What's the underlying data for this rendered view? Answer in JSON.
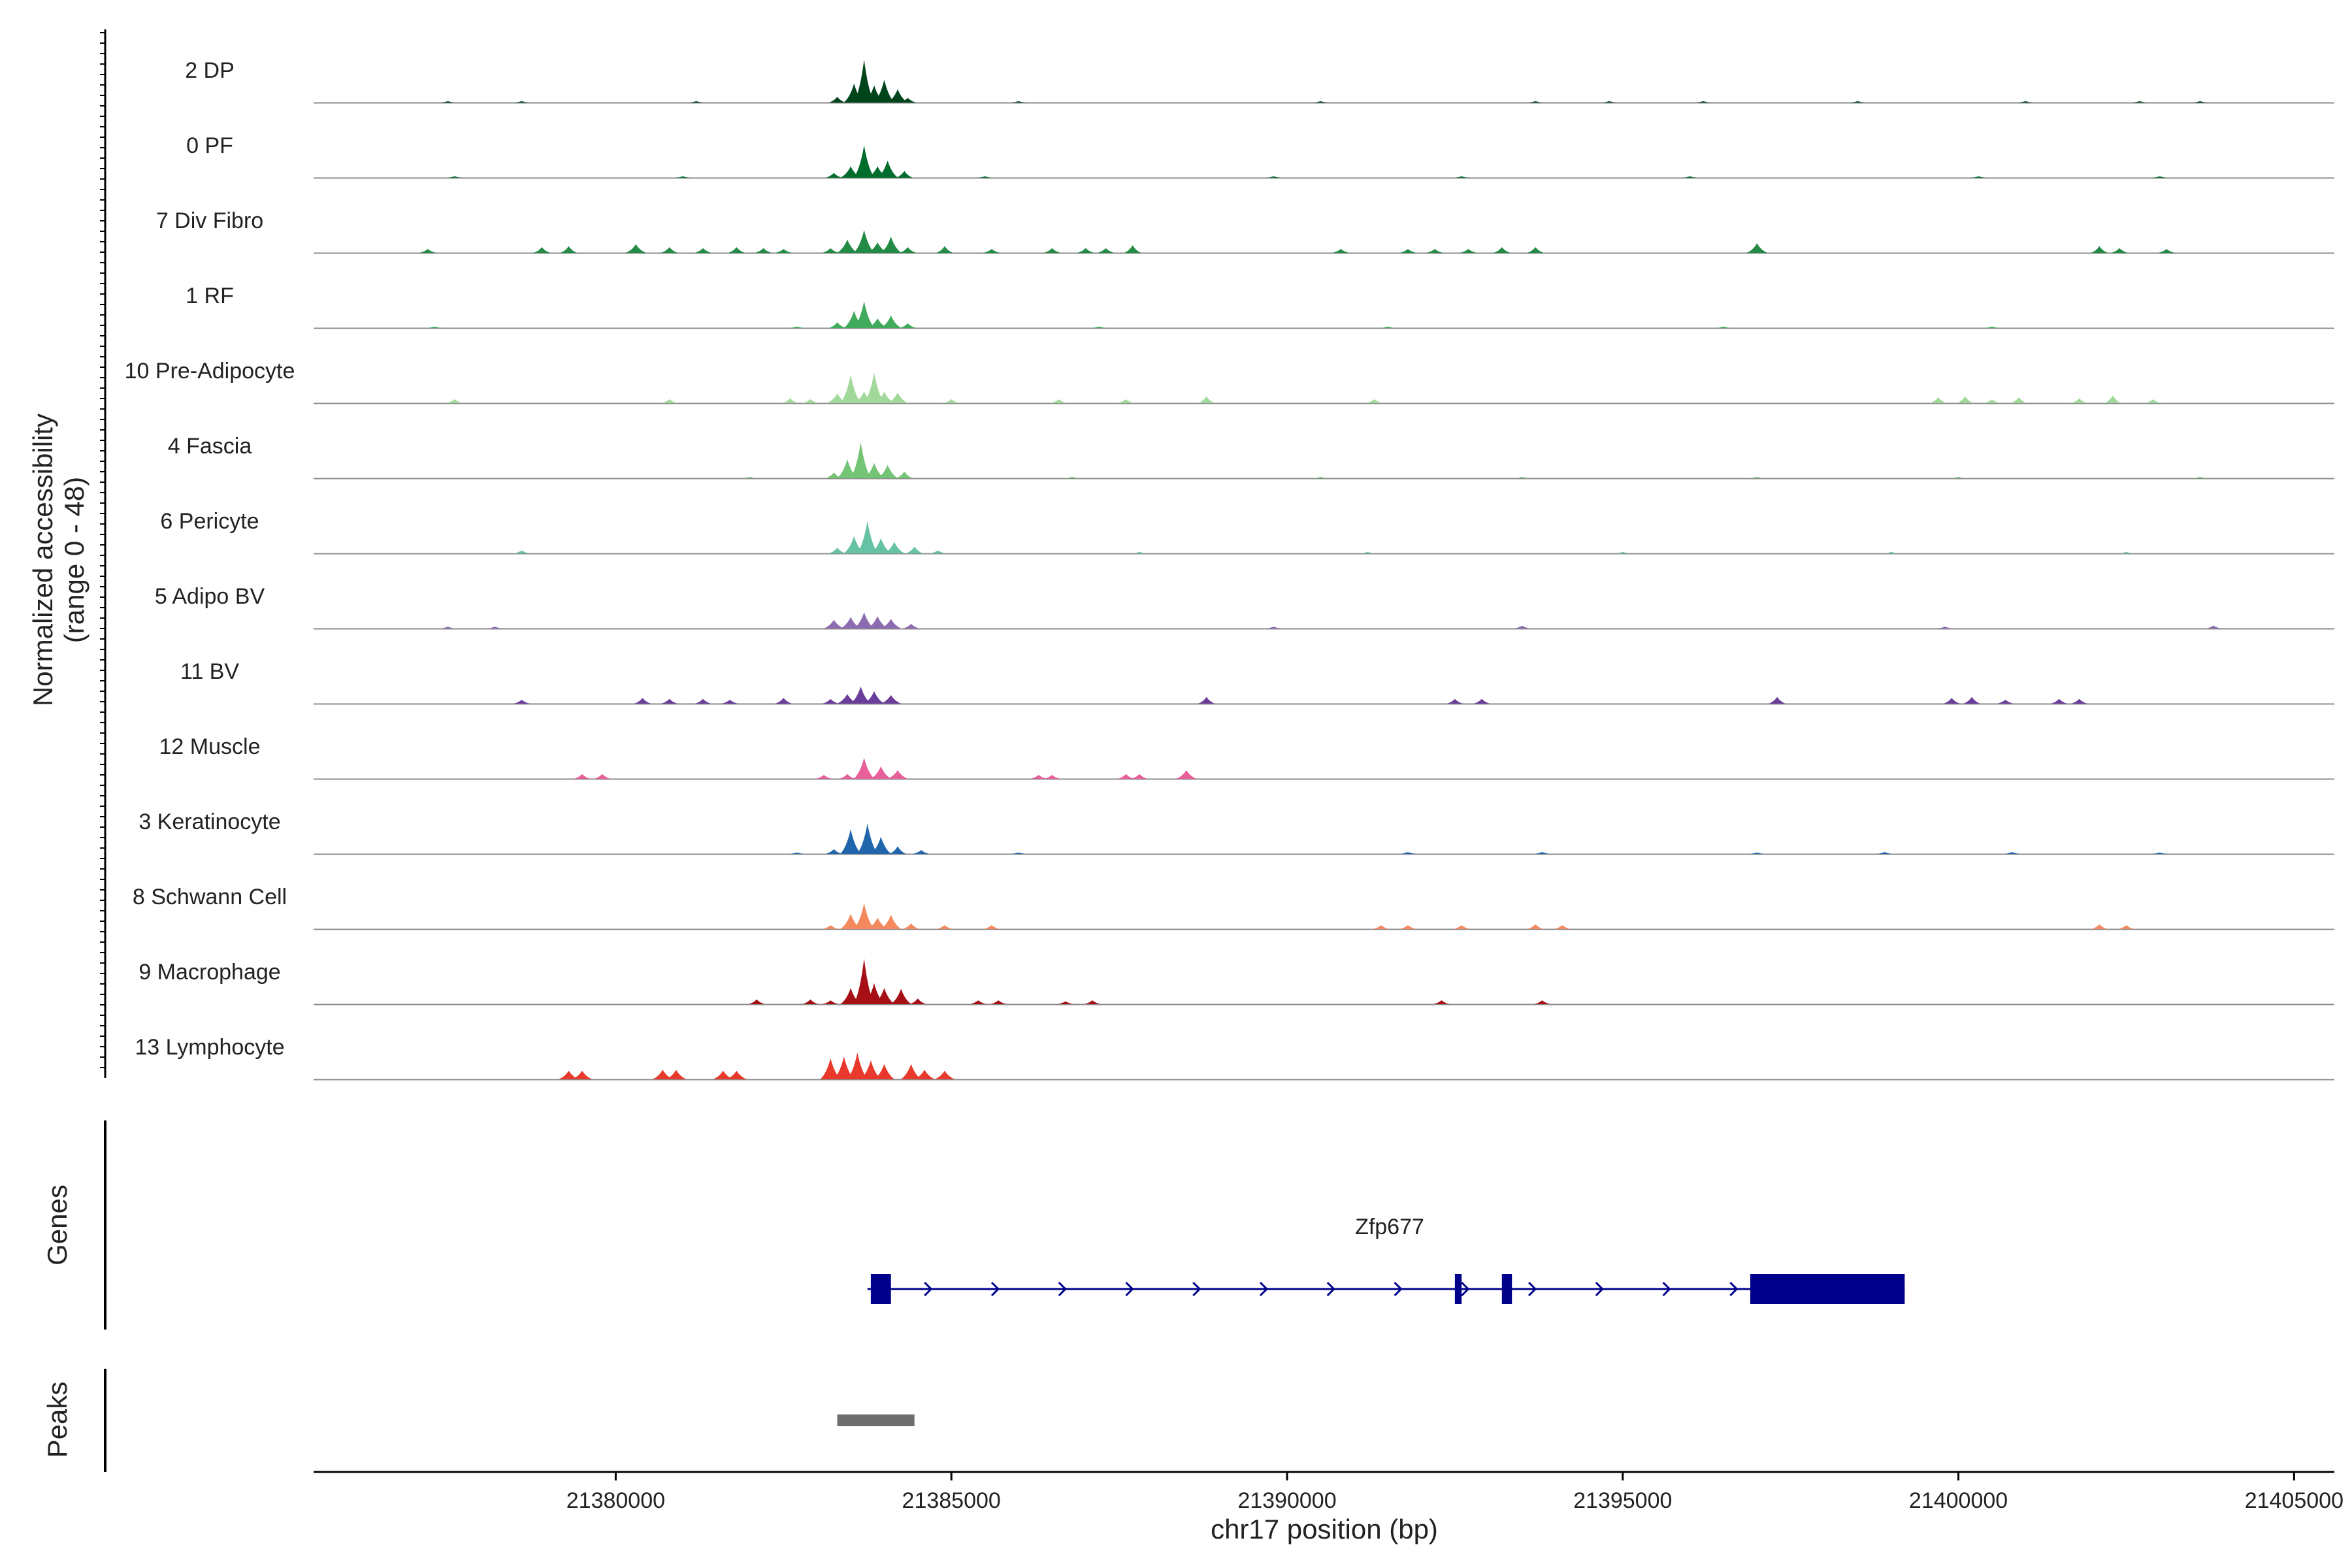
{
  "chart_data": {
    "type": "area",
    "xlabel": "chr17 position (bp)",
    "ylabel_line1": "Normalized accessibility",
    "ylabel_line2": "(range 0 - 48)",
    "y_range": [
      0,
      48
    ],
    "xlim": [
      21375500,
      21405600
    ],
    "x_ticks": [
      {
        "value": 21380000,
        "label": "21380000"
      },
      {
        "value": 21385000,
        "label": "21385000"
      },
      {
        "value": 21390000,
        "label": "21390000"
      },
      {
        "value": 21395000,
        "label": "21395000"
      },
      {
        "value": 21400000,
        "label": "21400000"
      },
      {
        "value": 21405000,
        "label": "21405000"
      }
    ],
    "tracks": [
      {
        "name": "2 DP",
        "color": "#00441b",
        "peaks": [
          [
            21383300,
            6
          ],
          [
            21383550,
            20
          ],
          [
            21383700,
            45
          ],
          [
            21383850,
            18
          ],
          [
            21384000,
            24
          ],
          [
            21384200,
            14
          ],
          [
            21384350,
            5
          ],
          [
            21377500,
            1.5
          ],
          [
            21378600,
            1.5
          ],
          [
            21381200,
            1.5
          ],
          [
            21386000,
            1.5
          ],
          [
            21390500,
            1.5
          ],
          [
            21393700,
            1.5
          ],
          [
            21394800,
            1.5
          ],
          [
            21396200,
            1.5
          ],
          [
            21398500,
            1.5
          ],
          [
            21401000,
            1.5
          ],
          [
            21402700,
            1.5
          ],
          [
            21403600,
            1.5
          ]
        ]
      },
      {
        "name": "0 PF",
        "color": "#006d2c",
        "peaks": [
          [
            21383250,
            5
          ],
          [
            21383500,
            12
          ],
          [
            21383700,
            34
          ],
          [
            21383900,
            12
          ],
          [
            21384050,
            18
          ],
          [
            21384300,
            7
          ],
          [
            21377600,
            1.5
          ],
          [
            21381000,
            1.5
          ],
          [
            21385500,
            1.5
          ],
          [
            21389800,
            1.5
          ],
          [
            21392600,
            1.5
          ],
          [
            21396000,
            1.5
          ],
          [
            21400300,
            1.5
          ],
          [
            21403000,
            1.5
          ]
        ]
      },
      {
        "name": "7 Div Fibro",
        "color": "#238b45",
        "peaks": [
          [
            21377200,
            4
          ],
          [
            21378900,
            6
          ],
          [
            21379300,
            7
          ],
          [
            21380300,
            9
          ],
          [
            21380800,
            6
          ],
          [
            21381300,
            5
          ],
          [
            21381800,
            6
          ],
          [
            21382200,
            5
          ],
          [
            21382500,
            4
          ],
          [
            21383200,
            5
          ],
          [
            21383450,
            14
          ],
          [
            21383700,
            24
          ],
          [
            21383900,
            11
          ],
          [
            21384100,
            17
          ],
          [
            21384350,
            6
          ],
          [
            21384900,
            7
          ],
          [
            21385600,
            4
          ],
          [
            21386500,
            5
          ],
          [
            21387000,
            5
          ],
          [
            21387300,
            5
          ],
          [
            21387700,
            8
          ],
          [
            21390800,
            4
          ],
          [
            21391800,
            4
          ],
          [
            21392200,
            4
          ],
          [
            21392700,
            4
          ],
          [
            21393200,
            6
          ],
          [
            21393700,
            6
          ],
          [
            21397000,
            10
          ],
          [
            21402100,
            7
          ],
          [
            21402400,
            5
          ],
          [
            21403100,
            4
          ]
        ]
      },
      {
        "name": "1 RF",
        "color": "#41ab5d",
        "peaks": [
          [
            21383300,
            6
          ],
          [
            21383550,
            18
          ],
          [
            21383700,
            28
          ],
          [
            21383900,
            10
          ],
          [
            21384100,
            13
          ],
          [
            21384350,
            5
          ],
          [
            21377300,
            1.5
          ],
          [
            21382700,
            1.5
          ],
          [
            21387200,
            1.5
          ],
          [
            21391500,
            1.5
          ],
          [
            21396500,
            1.5
          ],
          [
            21400500,
            1.5
          ]
        ]
      },
      {
        "name": "10 Pre-Adipocyte",
        "color": "#a1d99b",
        "peaks": [
          [
            21377600,
            4
          ],
          [
            21380800,
            4
          ],
          [
            21382600,
            5
          ],
          [
            21382900,
            4
          ],
          [
            21383300,
            10
          ],
          [
            21383500,
            30
          ],
          [
            21383700,
            12
          ],
          [
            21383850,
            32
          ],
          [
            21384000,
            12
          ],
          [
            21384200,
            11
          ],
          [
            21385000,
            4
          ],
          [
            21386600,
            4
          ],
          [
            21387600,
            4
          ],
          [
            21388800,
            7
          ],
          [
            21391300,
            4
          ],
          [
            21399700,
            6
          ],
          [
            21400100,
            7
          ],
          [
            21400500,
            4
          ],
          [
            21400900,
            6
          ],
          [
            21401800,
            5
          ],
          [
            21402300,
            8
          ],
          [
            21402900,
            4
          ]
        ]
      },
      {
        "name": "4 Fascia",
        "color": "#74c476",
        "peaks": [
          [
            21383250,
            6
          ],
          [
            21383450,
            20
          ],
          [
            21383650,
            38
          ],
          [
            21383850,
            16
          ],
          [
            21384050,
            14
          ],
          [
            21384300,
            7
          ],
          [
            21382000,
            1.5
          ],
          [
            21386800,
            1.5
          ],
          [
            21390500,
            1.5
          ],
          [
            21393500,
            1.5
          ],
          [
            21397000,
            1.5
          ],
          [
            21400000,
            1.5
          ],
          [
            21403600,
            1.5
          ]
        ]
      },
      {
        "name": "6 Pericyte",
        "color": "#66c2a4",
        "peaks": [
          [
            21383300,
            6
          ],
          [
            21383550,
            18
          ],
          [
            21383750,
            34
          ],
          [
            21383950,
            16
          ],
          [
            21384150,
            12
          ],
          [
            21384450,
            7
          ],
          [
            21384800,
            3
          ],
          [
            21378600,
            3
          ],
          [
            21387800,
            1.5
          ],
          [
            21391200,
            1.5
          ],
          [
            21395000,
            1.5
          ],
          [
            21399000,
            1.5
          ],
          [
            21402500,
            1.5
          ]
        ]
      },
      {
        "name": "5 Adipo BV",
        "color": "#8c6bb1",
        "peaks": [
          [
            21383250,
            9
          ],
          [
            21383500,
            12
          ],
          [
            21383700,
            17
          ],
          [
            21383900,
            13
          ],
          [
            21384100,
            10
          ],
          [
            21384400,
            5
          ],
          [
            21377500,
            2
          ],
          [
            21378200,
            2
          ],
          [
            21389800,
            2
          ],
          [
            21393500,
            3
          ],
          [
            21399800,
            2
          ],
          [
            21403800,
            3
          ]
        ]
      },
      {
        "name": "11 BV",
        "color": "#6a3d9a",
        "peaks": [
          [
            21378600,
            4
          ],
          [
            21380400,
            6
          ],
          [
            21380800,
            5
          ],
          [
            21381300,
            5
          ],
          [
            21381700,
            4
          ],
          [
            21382500,
            6
          ],
          [
            21383200,
            5
          ],
          [
            21383450,
            10
          ],
          [
            21383650,
            18
          ],
          [
            21383850,
            13
          ],
          [
            21384100,
            9
          ],
          [
            21388800,
            7
          ],
          [
            21392500,
            5
          ],
          [
            21392900,
            5
          ],
          [
            21397300,
            7
          ],
          [
            21399900,
            6
          ],
          [
            21400200,
            7
          ],
          [
            21400700,
            4
          ],
          [
            21401500,
            5
          ],
          [
            21401800,
            5
          ]
        ]
      },
      {
        "name": "12 Muscle",
        "color": "#e7609a",
        "peaks": [
          [
            21379500,
            5
          ],
          [
            21379800,
            5
          ],
          [
            21383100,
            4
          ],
          [
            21383450,
            5
          ],
          [
            21383700,
            22
          ],
          [
            21383950,
            13
          ],
          [
            21384200,
            9
          ],
          [
            21386300,
            4
          ],
          [
            21386500,
            4
          ],
          [
            21387600,
            5
          ],
          [
            21387800,
            5
          ],
          [
            21388500,
            9
          ]
        ]
      },
      {
        "name": "3 Keratinocyte",
        "color": "#2166ac",
        "peaks": [
          [
            21383250,
            5
          ],
          [
            21383500,
            26
          ],
          [
            21383750,
            32
          ],
          [
            21383950,
            18
          ],
          [
            21384200,
            8
          ],
          [
            21384550,
            4
          ],
          [
            21382700,
            1.5
          ],
          [
            21386000,
            1.5
          ],
          [
            21391800,
            2
          ],
          [
            21393800,
            2
          ],
          [
            21397000,
            1.5
          ],
          [
            21398900,
            2
          ],
          [
            21400800,
            2
          ],
          [
            21403000,
            1.5
          ]
        ]
      },
      {
        "name": "8 Schwann Cell",
        "color": "#f4895f",
        "peaks": [
          [
            21383200,
            4
          ],
          [
            21383500,
            16
          ],
          [
            21383700,
            27
          ],
          [
            21383900,
            12
          ],
          [
            21384100,
            15
          ],
          [
            21384400,
            6
          ],
          [
            21384900,
            4
          ],
          [
            21385600,
            4
          ],
          [
            21391400,
            4
          ],
          [
            21391800,
            4
          ],
          [
            21392600,
            4
          ],
          [
            21393700,
            5
          ],
          [
            21394100,
            4
          ],
          [
            21402100,
            5
          ],
          [
            21402500,
            4
          ]
        ]
      },
      {
        "name": "9 Macrophage",
        "color": "#a50f15",
        "peaks": [
          [
            21382100,
            5
          ],
          [
            21382900,
            5
          ],
          [
            21383200,
            4
          ],
          [
            21383500,
            17
          ],
          [
            21383700,
            48
          ],
          [
            21383850,
            22
          ],
          [
            21384000,
            17
          ],
          [
            21384250,
            16
          ],
          [
            21384500,
            6
          ],
          [
            21385400,
            4
          ],
          [
            21385700,
            4
          ],
          [
            21386700,
            3
          ],
          [
            21387100,
            4
          ],
          [
            21392300,
            4
          ],
          [
            21393800,
            4
          ]
        ]
      },
      {
        "name": "13 Lymphocyte",
        "color": "#e8392c",
        "peaks": [
          [
            21379300,
            9
          ],
          [
            21379500,
            9
          ],
          [
            21380700,
            10
          ],
          [
            21380900,
            10
          ],
          [
            21381600,
            9
          ],
          [
            21381800,
            9
          ],
          [
            21383200,
            22
          ],
          [
            21383400,
            24
          ],
          [
            21383600,
            28
          ],
          [
            21383800,
            20
          ],
          [
            21384000,
            16
          ],
          [
            21384400,
            16
          ],
          [
            21384600,
            10
          ],
          [
            21384900,
            9
          ]
        ]
      }
    ],
    "gene_track": {
      "label": "Genes",
      "gene_name": "Zfp677",
      "color": "#00008b",
      "line": [
        21383750,
        21399200
      ],
      "exons": [
        [
          21383800,
          21384100
        ],
        [
          21392500,
          21392600
        ],
        [
          21393200,
          21393350
        ],
        [
          21396900,
          21399200
        ]
      ]
    },
    "peak_track": {
      "label": "Peaks",
      "color": "#6e6e6e",
      "peaks": [
        [
          21383300,
          21384450
        ]
      ]
    }
  }
}
